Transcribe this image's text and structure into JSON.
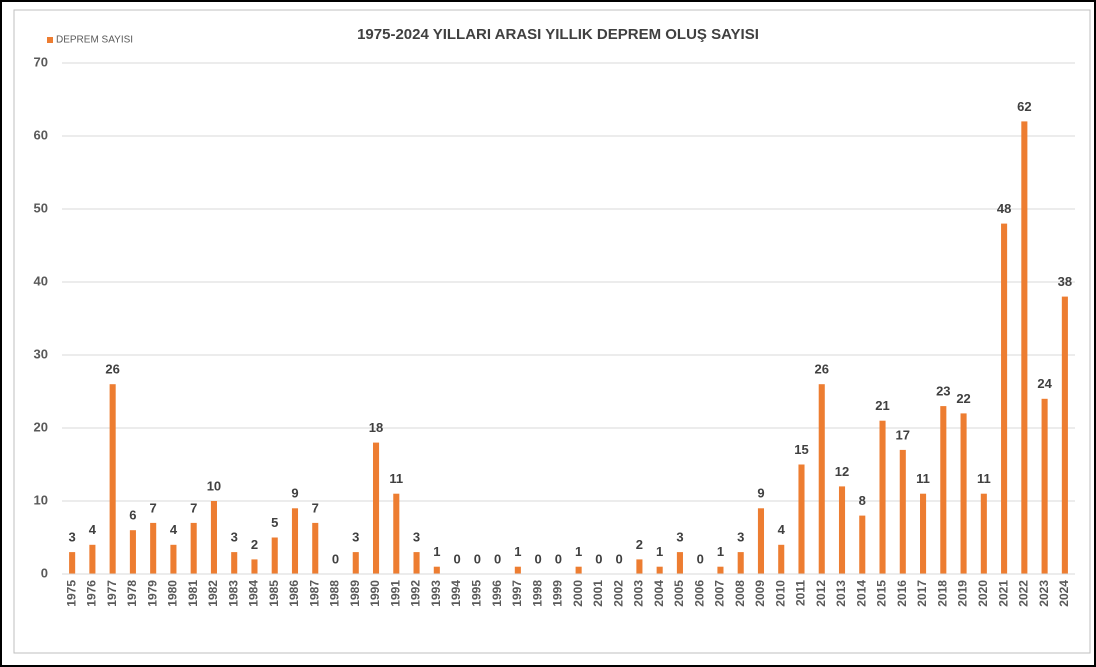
{
  "chart_data": {
    "type": "bar",
    "title": "1975-2024 YILLARI ARASI YILLIK DEPREM OLUŞ SAYISI",
    "categories": [
      "1975",
      "1976",
      "1977",
      "1978",
      "1979",
      "1980",
      "1981",
      "1982",
      "1983",
      "1984",
      "1985",
      "1986",
      "1987",
      "1988",
      "1989",
      "1990",
      "1991",
      "1992",
      "1993",
      "1994",
      "1995",
      "1996",
      "1997",
      "1998",
      "1999",
      "2000",
      "2001",
      "2002",
      "2003",
      "2004",
      "2005",
      "2006",
      "2007",
      "2008",
      "2009",
      "2010",
      "2011",
      "2012",
      "2013",
      "2014",
      "2015",
      "2016",
      "2017",
      "2018",
      "2019",
      "2020",
      "2021",
      "2022",
      "2023",
      "2024"
    ],
    "series": [
      {
        "name": "DEPREM SAYISI",
        "color": "#ed7d31",
        "values": [
          3,
          4,
          26,
          6,
          7,
          4,
          7,
          10,
          3,
          2,
          5,
          9,
          7,
          0,
          3,
          18,
          11,
          3,
          1,
          0,
          0,
          0,
          1,
          0,
          0,
          1,
          0,
          0,
          2,
          1,
          3,
          0,
          1,
          3,
          9,
          4,
          15,
          26,
          12,
          8,
          21,
          17,
          11,
          23,
          22,
          11,
          48,
          62,
          24,
          38
        ]
      }
    ],
    "ylim": [
      0,
      70
    ],
    "yticks": [
      0,
      10,
      20,
      30,
      40,
      50,
      60,
      70
    ],
    "grid": true,
    "legend": "top-left"
  }
}
